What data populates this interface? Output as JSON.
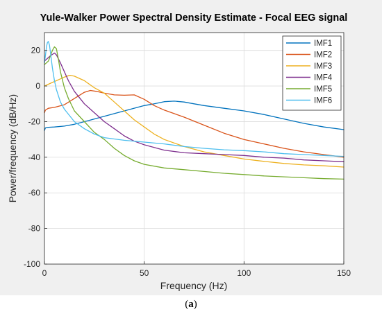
{
  "chart_data": {
    "type": "line",
    "title": "Yule-Walker Power Spectral Density Estimate - Focal EEG signal",
    "xlabel": "Frequency (Hz)",
    "ylabel": "Power/frequency (dB/Hz)",
    "xlim": [
      0,
      150
    ],
    "ylim": [
      -100,
      30
    ],
    "xticks": [
      0,
      50,
      100,
      150
    ],
    "yticks": [
      -100,
      -80,
      -60,
      -40,
      -20,
      0,
      20
    ],
    "grid": true,
    "legend_position": "top-right",
    "series": [
      {
        "name": "IMF1",
        "color": "#0072BD",
        "x": [
          0,
          0.5,
          2,
          5,
          10,
          15,
          20,
          30,
          40,
          50,
          55,
          60,
          65,
          70,
          75,
          80,
          90,
          100,
          110,
          120,
          130,
          140,
          150
        ],
        "y": [
          -25,
          -23.5,
          -23.2,
          -23,
          -22.5,
          -21.5,
          -20,
          -17,
          -14,
          -11,
          -10,
          -8.8,
          -8.5,
          -9,
          -10,
          -11,
          -12.5,
          -14,
          -16,
          -18.5,
          -21,
          -23,
          -24.5
        ]
      },
      {
        "name": "IMF2",
        "color": "#D95319",
        "x": [
          0,
          0.5,
          2,
          5,
          10,
          15,
          20,
          23,
          26,
          30,
          35,
          40,
          45,
          50,
          55,
          60,
          65,
          70,
          80,
          90,
          100,
          110,
          120,
          130,
          140,
          150
        ],
        "y": [
          -15,
          -13.5,
          -12.5,
          -12,
          -10.5,
          -7,
          -3.5,
          -2.5,
          -3,
          -4,
          -5,
          -5.2,
          -5,
          -7.5,
          -11,
          -13.5,
          -15.5,
          -17.5,
          -22,
          -26.5,
          -30,
          -32.5,
          -35,
          -37,
          -38.5,
          -40
        ]
      },
      {
        "name": "IMF3",
        "color": "#EDB120",
        "x": [
          0,
          2,
          4,
          6,
          8,
          10,
          12,
          13,
          15,
          20,
          25,
          30,
          35,
          40,
          45,
          50,
          55,
          60,
          70,
          80,
          90,
          100,
          110,
          120,
          130,
          140,
          150
        ],
        "y": [
          0,
          1,
          2,
          3,
          4,
          5,
          5.8,
          6,
          5.5,
          3,
          -1,
          -4,
          -9,
          -14,
          -19,
          -23,
          -27,
          -30,
          -34,
          -37,
          -39,
          -41,
          -42.3,
          -43.5,
          -44.3,
          -44.8,
          -45.5
        ]
      },
      {
        "name": "IMF4",
        "color": "#7E2F8E",
        "x": [
          0,
          1,
          3,
          5,
          6,
          8,
          10,
          12,
          15,
          20,
          25,
          30,
          35,
          40,
          45,
          50,
          60,
          70,
          80,
          90,
          100,
          110,
          120,
          130,
          140,
          150
        ],
        "y": [
          14,
          15,
          17,
          18.5,
          17.5,
          13,
          8,
          3,
          -3,
          -10,
          -15,
          -20,
          -24,
          -28,
          -31,
          -33,
          -36,
          -37.5,
          -38,
          -38.5,
          -39,
          -40,
          -40.5,
          -41.5,
          -42,
          -42.5
        ]
      },
      {
        "name": "IMF5",
        "color": "#77AC30",
        "x": [
          0,
          2,
          3,
          4,
          5,
          6,
          7,
          8,
          10,
          12,
          15,
          20,
          25,
          30,
          35,
          40,
          45,
          50,
          60,
          70,
          80,
          90,
          100,
          110,
          120,
          130,
          140,
          150
        ],
        "y": [
          12,
          14,
          17,
          20,
          22,
          21,
          15,
          8,
          -1,
          -7,
          -14,
          -20,
          -26,
          -30,
          -35,
          -39,
          -42,
          -44,
          -46,
          -47,
          -48,
          -49,
          -49.7,
          -50.5,
          -51,
          -51.5,
          -52,
          -52.3
        ]
      },
      {
        "name": "IMF6",
        "color": "#4DBEEE",
        "x": [
          0,
          0.5,
          1,
          1.5,
          2,
          2.5,
          3,
          4,
          5,
          6,
          8,
          10,
          15,
          20,
          25,
          30,
          40,
          50,
          60,
          70,
          80,
          90,
          100,
          110,
          120,
          130,
          140,
          150
        ],
        "y": [
          13,
          17,
          22,
          24.5,
          25,
          23,
          19,
          10,
          3,
          -2,
          -9,
          -13,
          -20,
          -24,
          -27,
          -29,
          -30.5,
          -31.5,
          -32.5,
          -34,
          -35,
          -35.8,
          -36.3,
          -37,
          -38,
          -38.5,
          -39,
          -39.5
        ]
      }
    ]
  },
  "caption": {
    "open": "(",
    "letter": "a",
    "close": ")"
  }
}
